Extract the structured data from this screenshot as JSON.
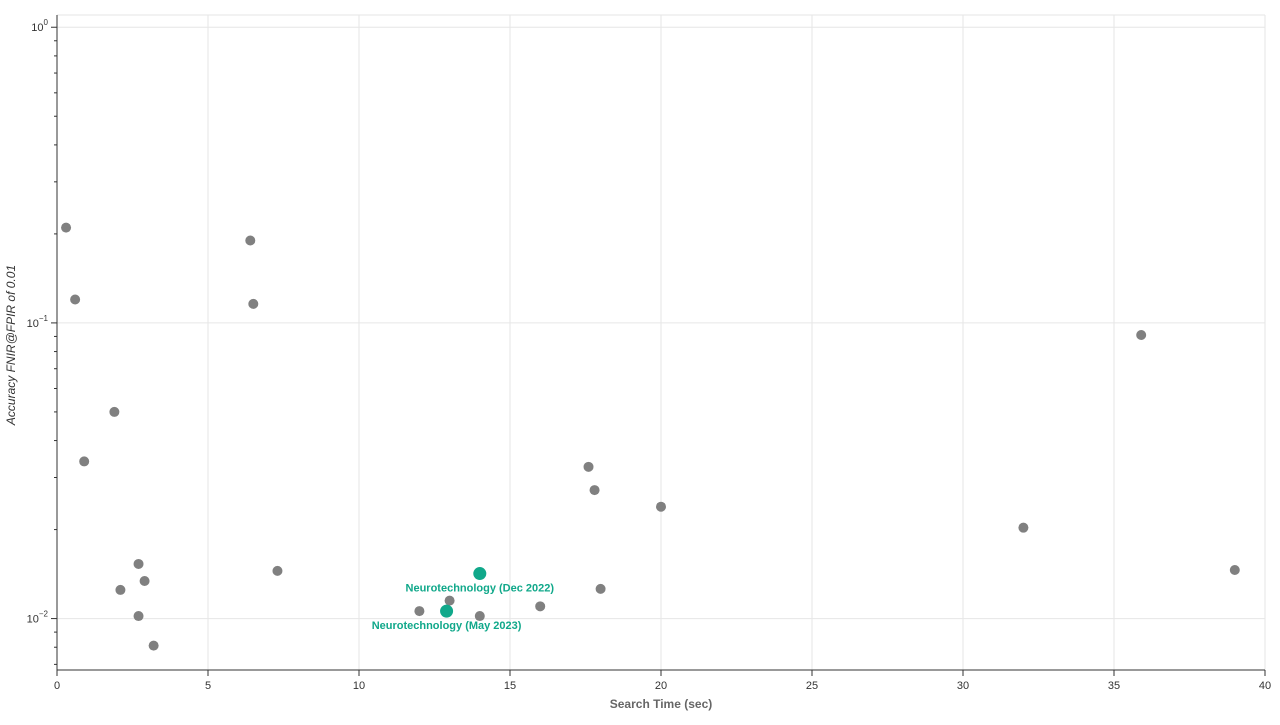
{
  "chart_data": {
    "type": "scatter",
    "xlabel": "Search Time (sec)",
    "ylabel": "Accuracy FNIR@FPIR of 0.01",
    "xlim": [
      0,
      40
    ],
    "ylim": [
      0.0067,
      1.1
    ],
    "yscale": "log",
    "grid": true,
    "x_ticks": [
      0,
      5,
      10,
      15,
      20,
      25,
      30,
      35,
      40
    ],
    "y_ticks": [
      {
        "value": 1,
        "base": "10",
        "exp": "0"
      },
      {
        "value": 0.1,
        "base": "10",
        "exp": "−1"
      },
      {
        "value": 0.01,
        "base": "10",
        "exp": "−2"
      }
    ],
    "colors": {
      "others": "#808080",
      "highlight": "#10a88a"
    },
    "series": [
      {
        "role": "others",
        "points": [
          {
            "x": 0.3,
            "y": 0.21
          },
          {
            "x": 0.6,
            "y": 0.12
          },
          {
            "x": 0.9,
            "y": 0.034
          },
          {
            "x": 1.9,
            "y": 0.05
          },
          {
            "x": 2.1,
            "y": 0.0125
          },
          {
            "x": 2.7,
            "y": 0.0153
          },
          {
            "x": 2.7,
            "y": 0.0102
          },
          {
            "x": 2.9,
            "y": 0.0134
          },
          {
            "x": 3.2,
            "y": 0.0081
          },
          {
            "x": 6.4,
            "y": 0.19
          },
          {
            "x": 6.5,
            "y": 0.116
          },
          {
            "x": 7.3,
            "y": 0.0145
          },
          {
            "x": 12.0,
            "y": 0.0106
          },
          {
            "x": 13.0,
            "y": 0.0115
          },
          {
            "x": 14.0,
            "y": 0.0102
          },
          {
            "x": 16.0,
            "y": 0.011
          },
          {
            "x": 17.6,
            "y": 0.0326
          },
          {
            "x": 17.8,
            "y": 0.0272
          },
          {
            "x": 18.0,
            "y": 0.0126
          },
          {
            "x": 20.0,
            "y": 0.0239
          },
          {
            "x": 32.0,
            "y": 0.0203
          },
          {
            "x": 35.9,
            "y": 0.091
          },
          {
            "x": 39.0,
            "y": 0.0146
          }
        ]
      },
      {
        "role": "highlight",
        "points": [
          {
            "x": 14.0,
            "y": 0.0142,
            "label": "Neurotechnology (Dec 2022)",
            "label_pos": "below"
          },
          {
            "x": 12.9,
            "y": 0.0106,
            "label": "Neurotechnology (May 2023)",
            "label_pos": "below"
          }
        ]
      }
    ]
  }
}
